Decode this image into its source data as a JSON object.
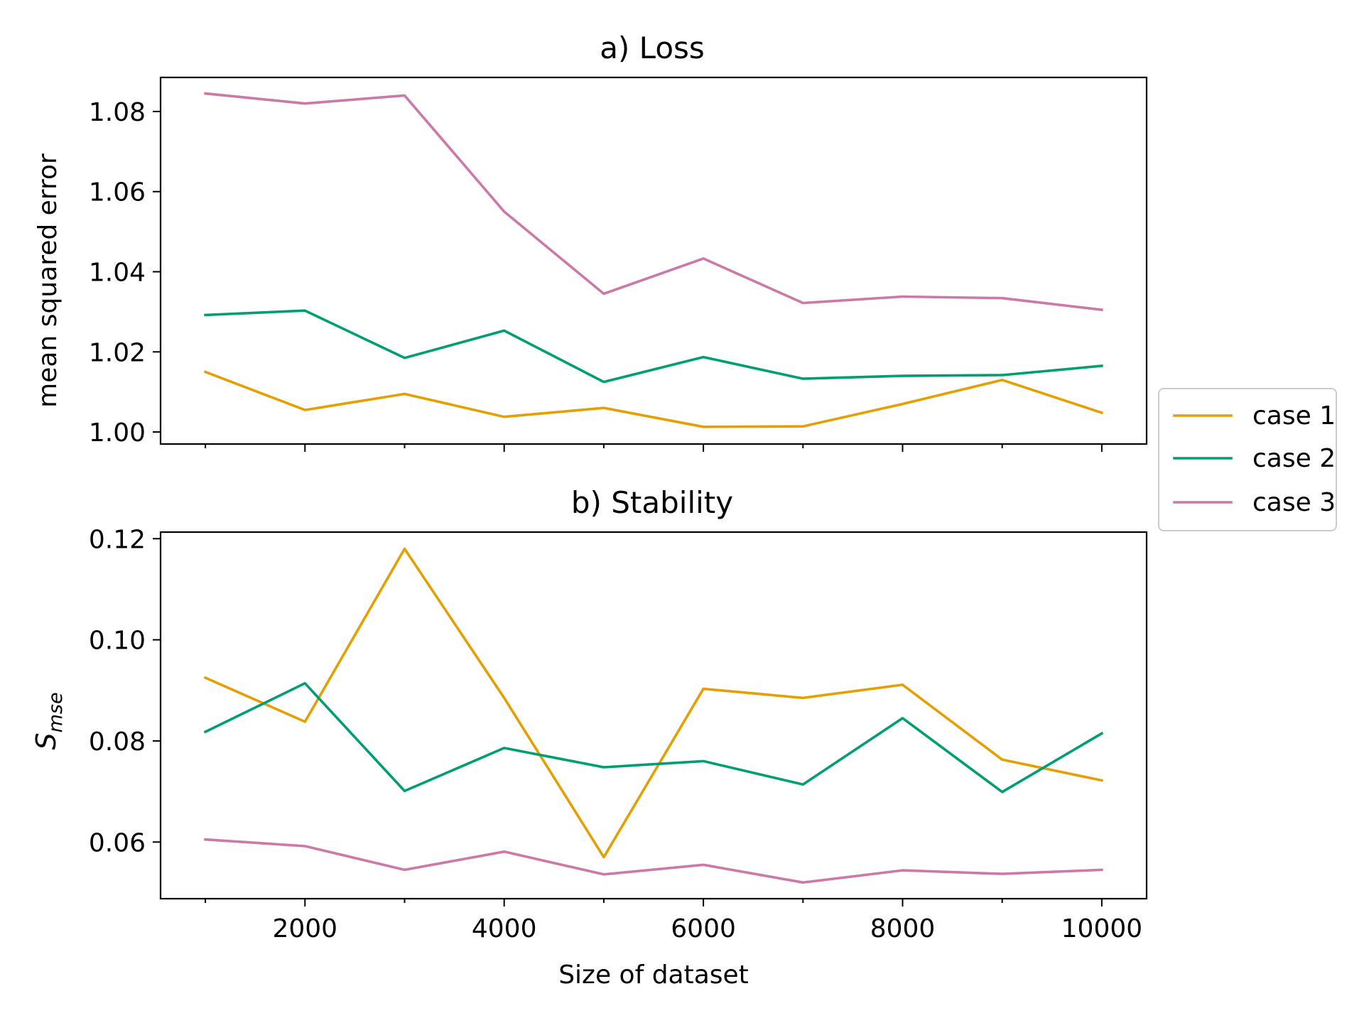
{
  "figure": {
    "xlabel": "Size of dataset",
    "legend_position": "right",
    "legend": [
      {
        "label": "case 1",
        "color": "#E69F00"
      },
      {
        "label": "case 2",
        "color": "#009E73"
      },
      {
        "label": "case 3",
        "color": "#CC79A7"
      }
    ]
  },
  "chart_data": [
    {
      "type": "line",
      "title": "a) Loss",
      "ylabel": "mean squared error",
      "xlabel": "",
      "xlim": [
        550,
        10450
      ],
      "ylim": [
        0.997,
        1.0885
      ],
      "xticks": [
        1000,
        2000,
        3000,
        4000,
        5000,
        6000,
        7000,
        8000,
        9000,
        10000
      ],
      "xtick_labels_shown": false,
      "yticks": [
        1.0,
        1.02,
        1.04,
        1.06,
        1.08
      ],
      "ytick_labels": [
        "1.00",
        "1.02",
        "1.04",
        "1.06",
        "1.08"
      ],
      "x": [
        1000,
        2000,
        3000,
        4000,
        5000,
        6000,
        7000,
        8000,
        9000,
        10000
      ],
      "series": [
        {
          "name": "case 1",
          "color": "#E69F00",
          "values": [
            1.015,
            1.0055,
            1.0095,
            1.0038,
            1.006,
            1.0013,
            1.0014,
            1.007,
            1.013,
            1.0048
          ]
        },
        {
          "name": "case 2",
          "color": "#009E73",
          "values": [
            1.0292,
            1.0303,
            1.0185,
            1.0253,
            1.0125,
            1.0187,
            1.0133,
            1.014,
            1.0142,
            1.0165
          ]
        },
        {
          "name": "case 3",
          "color": "#CC79A7",
          "values": [
            1.0845,
            1.082,
            1.084,
            1.055,
            1.0345,
            1.0433,
            1.0322,
            1.0338,
            1.0334,
            1.0305
          ]
        }
      ]
    },
    {
      "type": "line",
      "title": "b) Stability",
      "ylabel": "S_mse",
      "ylabel_main": "S",
      "ylabel_sub": "mse",
      "xlabel": "Size of dataset",
      "xlim": [
        550,
        10450
      ],
      "ylim": [
        0.0488,
        0.1213
      ],
      "xticks": [
        1000,
        2000,
        3000,
        4000,
        5000,
        6000,
        7000,
        8000,
        9000,
        10000
      ],
      "xtick_labels": [
        "",
        "2000",
        "",
        "4000",
        "",
        "6000",
        "",
        "8000",
        "",
        "10000"
      ],
      "yticks": [
        0.06,
        0.08,
        0.1,
        0.12
      ],
      "ytick_labels": [
        "0.06",
        "0.08",
        "0.10",
        "0.12"
      ],
      "x": [
        1000,
        2000,
        3000,
        4000,
        5000,
        6000,
        7000,
        8000,
        9000,
        10000
      ],
      "series": [
        {
          "name": "case 1",
          "color": "#E69F00",
          "values": [
            0.0925,
            0.0838,
            0.118,
            0.0885,
            0.057,
            0.0903,
            0.0885,
            0.0911,
            0.0763,
            0.0722
          ]
        },
        {
          "name": "case 2",
          "color": "#009E73",
          "values": [
            0.0818,
            0.0914,
            0.0701,
            0.0786,
            0.0748,
            0.076,
            0.0714,
            0.0845,
            0.0699,
            0.0815
          ]
        },
        {
          "name": "case 3",
          "color": "#CC79A7",
          "values": [
            0.0605,
            0.0592,
            0.0545,
            0.0581,
            0.0536,
            0.0555,
            0.052,
            0.0544,
            0.0537,
            0.0545
          ]
        }
      ]
    }
  ]
}
